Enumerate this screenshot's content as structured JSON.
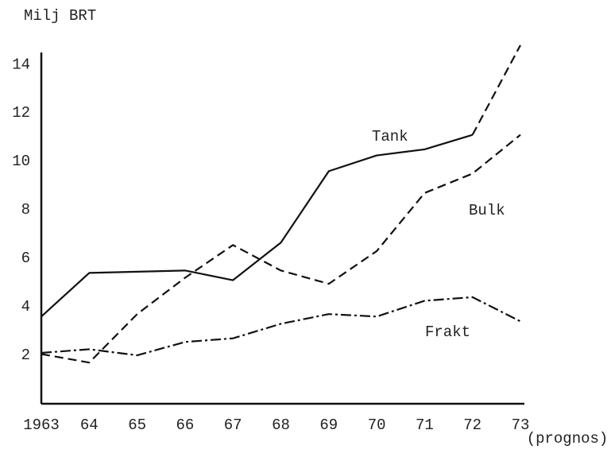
{
  "chart_data": {
    "type": "line",
    "y_label": "Milj BRT",
    "x_annotation": "(prognos)",
    "categories": [
      "1963",
      "64",
      "65",
      "66",
      "67",
      "68",
      "69",
      "70",
      "71",
      "72",
      "73"
    ],
    "series": [
      {
        "name": "Tank",
        "color": "#111111",
        "style": "solid",
        "values": [
          3.6,
          5.4,
          5.45,
          5.5,
          5.1,
          6.65,
          9.6,
          10.25,
          10.5,
          11.1,
          14.8
        ]
      },
      {
        "name": "Bulk",
        "color": "#111111",
        "style": "dashed",
        "values": [
          2.05,
          1.7,
          3.7,
          5.2,
          6.55,
          5.5,
          4.95,
          6.3,
          8.7,
          9.5,
          11.1
        ]
      },
      {
        "name": "Frakt",
        "color": "#111111",
        "style": "dashdot",
        "values": [
          2.1,
          2.25,
          2.0,
          2.55,
          2.7,
          3.3,
          3.7,
          3.6,
          4.25,
          4.4,
          3.4
        ]
      }
    ],
    "ylim": [
      0,
      14.5
    ],
    "yticks": [
      2,
      4,
      6,
      8,
      10,
      12,
      14
    ]
  }
}
